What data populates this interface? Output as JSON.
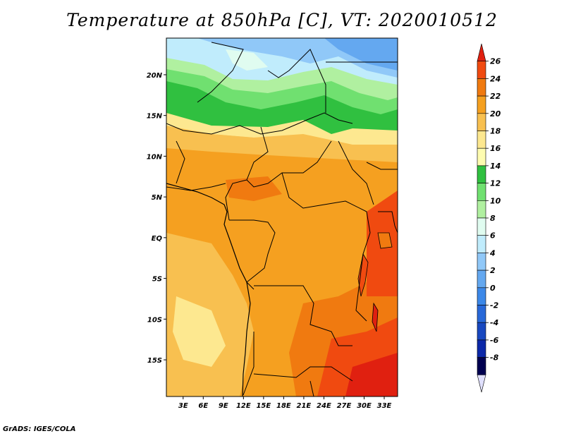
{
  "title": "Temperature at 850hPa [C], VT: 2020010512",
  "credit": "GrADS: IGES/COLA",
  "map": {
    "lat_labels": [
      "20N",
      "15N",
      "10N",
      "5N",
      "EQ",
      "5S",
      "10S",
      "15S"
    ],
    "lat_values": [
      20,
      15,
      10,
      5,
      0,
      -5,
      -10,
      -15
    ],
    "lon_labels": [
      "3E",
      "6E",
      "9E",
      "12E",
      "15E",
      "18E",
      "21E",
      "24E",
      "27E",
      "30E",
      "33E"
    ],
    "lon_values": [
      3,
      6,
      9,
      12,
      15,
      18,
      21,
      24,
      27,
      30,
      33
    ],
    "lon_range": [
      0.5,
      35
    ],
    "lat_range": [
      -19.5,
      24.5
    ]
  },
  "colorbar": {
    "labels": [
      "26",
      "24",
      "22",
      "20",
      "18",
      "16",
      "14",
      "12",
      "10",
      "8",
      "6",
      "4",
      "2",
      "0",
      "-2",
      "-4",
      "-6",
      "-8"
    ],
    "colors": [
      "#e02010",
      "#f04a10",
      "#f07a10",
      "#f5a020",
      "#f8c050",
      "#fde890",
      "#fefcb0",
      "#30c040",
      "#70e070",
      "#b0f0a0",
      "#e0fcf0",
      "#c0ecfc",
      "#90c8f8",
      "#64a8f0",
      "#3c88e8",
      "#2868d8",
      "#1848c0",
      "#0c28a8",
      "#000050",
      "#e0e0ff"
    ]
  }
}
